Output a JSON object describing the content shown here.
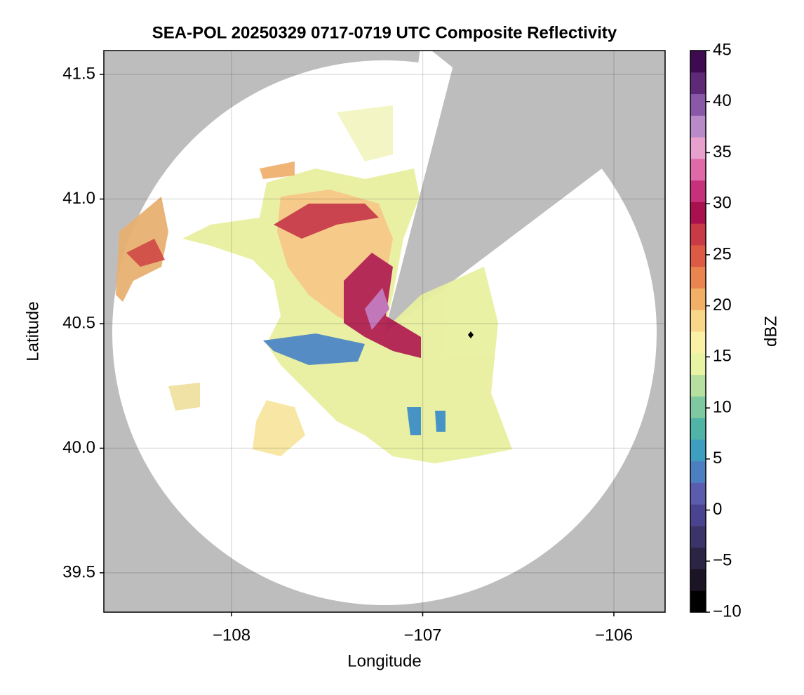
{
  "chart_data": {
    "type": "radar-map",
    "title": "SEA-POL 20250329 0717-0719 UTC Composite Reflectivity",
    "x_label": "Longitude",
    "y_label": "Latitude",
    "xlim": [
      -108.668,
      -105.732
    ],
    "xticks": [
      {
        "value": -108,
        "label": "−108"
      },
      {
        "value": -107,
        "label": "−107"
      },
      {
        "value": -106,
        "label": "−106"
      }
    ],
    "ylim": [
      39.342,
      41.596
    ],
    "yticks": [
      39.5,
      {
        "value": 40.0,
        "label": "40.0"
      },
      40.5,
      {
        "value": 41.0,
        "label": "41.0"
      },
      41.5
    ],
    "grid": true,
    "colorbar": {
      "label": "dBZ",
      "lim": [
        -10,
        45
      ],
      "ticks": [
        {
          "value": -10,
          "label": "−10"
        },
        {
          "value": -5,
          "label": "−5"
        },
        0,
        5,
        10,
        15,
        20,
        25,
        30,
        35,
        40,
        45
      ],
      "colors": [
        "#000000",
        "#1a1424",
        "#2b2444",
        "#3b3468",
        "#4a4490",
        "#5a5cae",
        "#4c7fc0",
        "#3d9ec0",
        "#4fb3a6",
        "#7fc9a0",
        "#b6e0a0",
        "#e8f4a4",
        "#fbf1a6",
        "#f8d788",
        "#f2b066",
        "#eb8550",
        "#dd5a44",
        "#c73a46",
        "#a8114e",
        "#c7307a",
        "#e06aa8",
        "#e8a0cc",
        "#b88ac8",
        "#8a58a8",
        "#5e2a78",
        "#3e0a50"
      ]
    }
  }
}
